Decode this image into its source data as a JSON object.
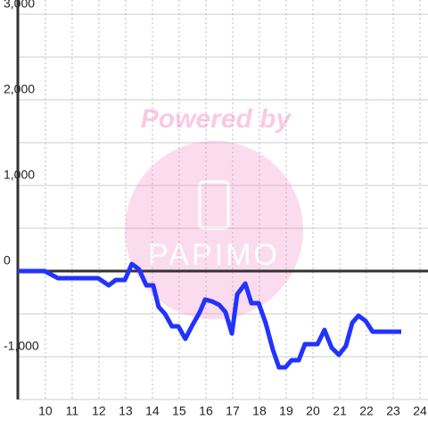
{
  "chart_data": {
    "type": "line",
    "watermark": {
      "title": "Powered by",
      "brand": "PAPIMO"
    },
    "x": [
      8.97,
      9.97,
      10.47,
      11.97,
      12.37,
      12.63,
      12.97,
      13.23,
      13.5,
      13.77,
      14.03,
      14.23,
      14.47,
      14.73,
      14.97,
      15.23,
      15.47,
      15.77,
      15.97,
      16.23,
      16.5,
      16.73,
      16.97,
      17.17,
      17.47,
      17.7,
      17.97,
      18.23,
      18.5,
      18.73,
      18.97,
      19.2,
      19.47,
      19.7,
      20.17,
      20.43,
      20.7,
      20.97,
      21.23,
      21.47,
      21.7,
      21.97,
      22.23,
      23.3
    ],
    "series": [
      {
        "color": "#2233ff",
        "values": [
          0,
          0,
          -83,
          -83,
          -167,
          -104,
          -104,
          83,
          21,
          -167,
          -167,
          -417,
          -500,
          -646,
          -646,
          -792,
          -646,
          -479,
          -333,
          -354,
          -396,
          -479,
          -729,
          -271,
          -146,
          -375,
          -375,
          -604,
          -917,
          -1125,
          -1125,
          -1042,
          -1042,
          -854,
          -854,
          -688,
          -896,
          -979,
          -875,
          -604,
          -521,
          -583,
          -708,
          -708
        ]
      }
    ],
    "xlim": [
      8.97,
      24.3
    ],
    "ylim": [
      -1500,
      3000
    ],
    "xticks": [
      10,
      11,
      12,
      13,
      14,
      15,
      16,
      17,
      18,
      19,
      20,
      21,
      22,
      23,
      24
    ],
    "yticks": [
      {
        "value": -1000,
        "label": "-1,000"
      },
      0,
      {
        "value": 1000,
        "label": "1,000"
      },
      {
        "value": 2000,
        "label": "2,000"
      },
      {
        "value": 3000,
        "label": "3,000"
      }
    ],
    "yminorticks": [
      -1500,
      -500,
      500,
      1500,
      2500
    ],
    "grid": true
  }
}
